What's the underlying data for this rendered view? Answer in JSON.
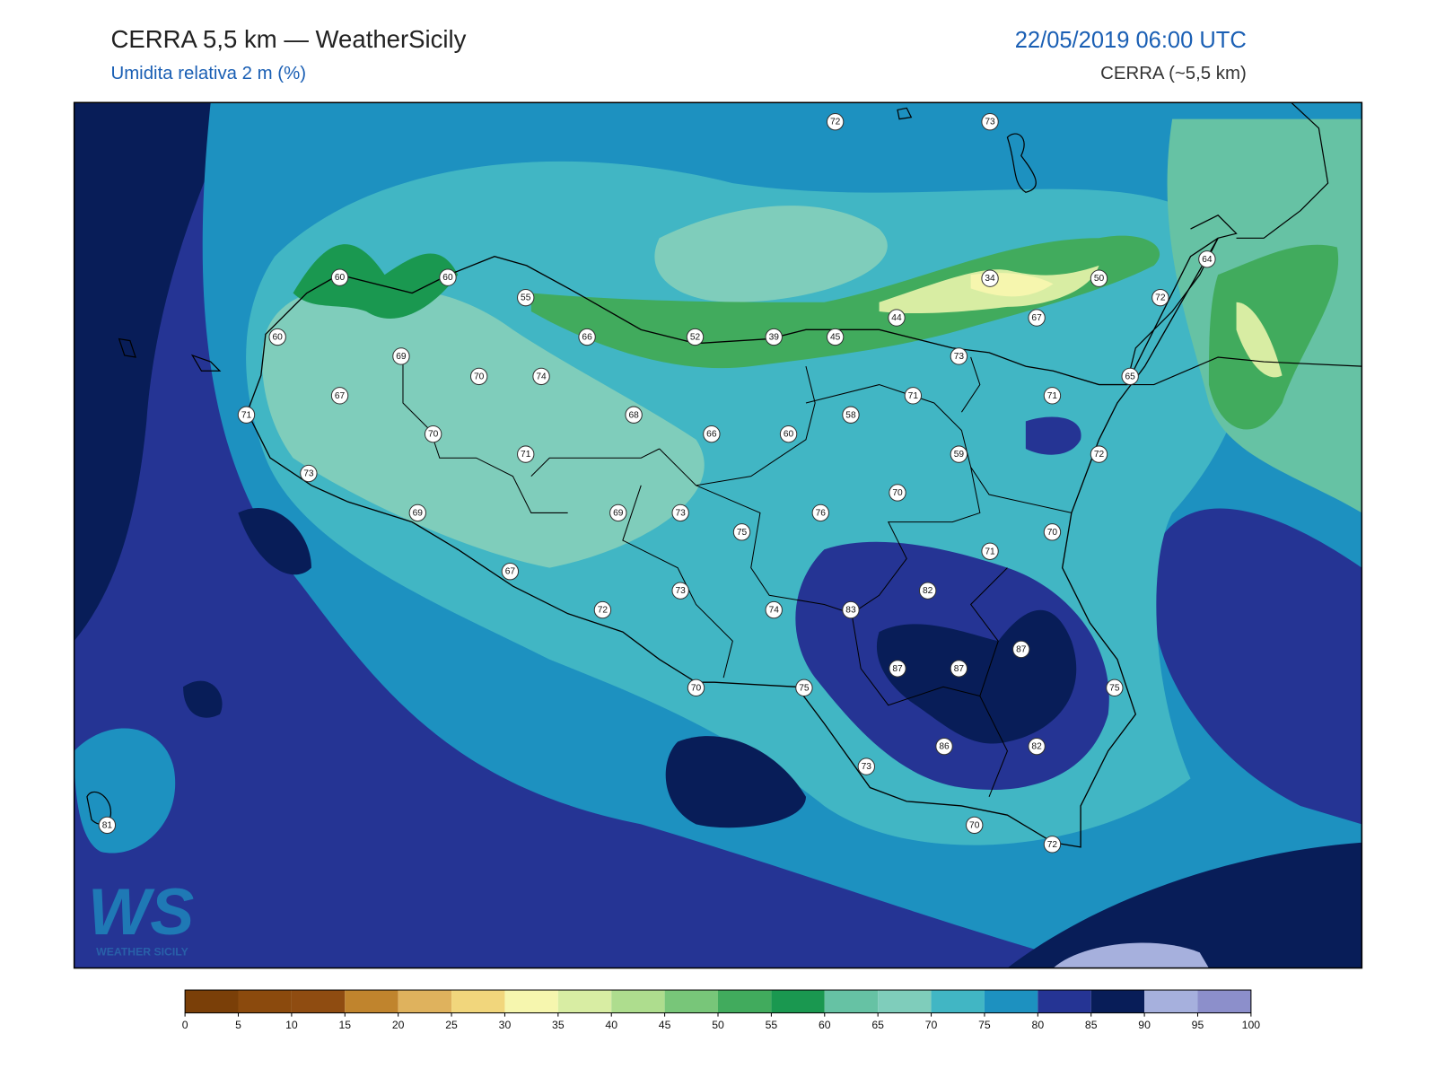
{
  "header": {
    "title": "CERRA 5,5 km — WeatherSicily",
    "subtitle": "Umidita relativa 2 m (%)",
    "datetime": "22/05/2019 06:00 UTC",
    "model": "CERRA (~5,5 km)"
  },
  "stations": [
    72,
    73,
    60,
    60,
    55,
    34,
    50,
    64,
    72,
    67,
    44,
    60,
    66,
    52,
    39,
    45,
    69,
    73,
    70,
    74,
    65,
    67,
    71,
    71,
    71,
    68,
    58,
    70,
    66,
    60,
    71,
    59,
    72,
    73,
    70,
    69,
    69,
    73,
    76,
    75,
    70,
    71,
    67,
    82,
    73,
    72,
    74,
    83,
    87,
    87,
    87,
    70,
    75,
    75,
    86,
    82,
    73,
    81,
    70,
    72
  ],
  "colorbar": {
    "ticks": [
      0,
      5,
      10,
      15,
      20,
      25,
      30,
      35,
      40,
      45,
      50,
      55,
      60,
      65,
      70,
      75,
      80,
      85,
      90,
      95,
      100
    ],
    "colors": [
      "#7a3f08",
      "#8b4a0d",
      "#8f4c11",
      "#c0842d",
      "#dfb25d",
      "#f1d67c",
      "#f6f6ae",
      "#d8eda3",
      "#aedd8e",
      "#78c679",
      "#41ab5d",
      "#1a9850",
      "#66c2a4",
      "#7fcdbb",
      "#41b6c4",
      "#1d91c0",
      "#253494",
      "#081d58",
      "#a6b0dd",
      "#8c8fcb"
    ]
  },
  "logo": {
    "mark": "WS",
    "text": "WEATHER SICILY"
  }
}
